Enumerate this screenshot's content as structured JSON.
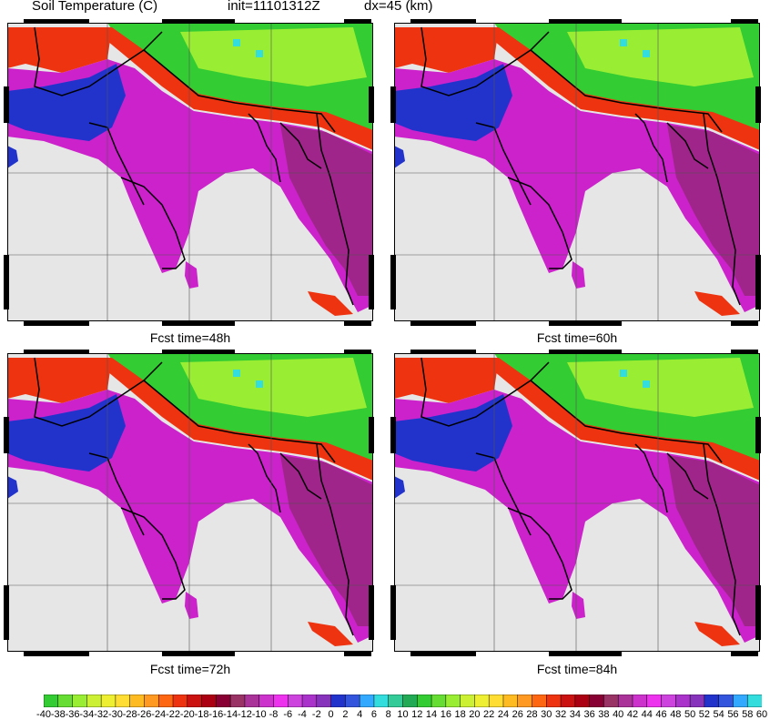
{
  "header": {
    "title": "Soil Temperature (C)",
    "init": "init=11101312Z",
    "dx": "dx=45 (km)"
  },
  "panels": [
    {
      "id": "p1",
      "label": ""
    },
    {
      "id": "p2",
      "label": ""
    },
    {
      "id": "p3",
      "label": "Fcst time=48h"
    },
    {
      "id": "p4",
      "label": "Fcst time=60h"
    }
  ],
  "bottom_labels": [
    "Fcst time=72h",
    "Fcst time=84h"
  ],
  "colorbar": {
    "ticks": [
      "-40",
      "-38",
      "-36",
      "-34",
      "-32",
      "-30",
      "-28",
      "-26",
      "-24",
      "-22",
      "-20",
      "-18",
      "-16",
      "-14",
      "-12",
      "-10",
      "-8",
      "-6",
      "-4",
      "-2",
      "0",
      "2",
      "4",
      "6",
      "8",
      "10",
      "12",
      "14",
      "16",
      "18",
      "20",
      "22",
      "24",
      "26",
      "28",
      "30",
      "32",
      "34",
      "36",
      "38",
      "40",
      "42",
      "44",
      "46",
      "48",
      "50",
      "52",
      "54",
      "56",
      "58",
      "60"
    ],
    "colors": [
      "#33cc33",
      "#66dd33",
      "#99ee33",
      "#ccf033",
      "#eeee33",
      "#ffdd33",
      "#ffbb22",
      "#ff9922",
      "#ff6611",
      "#ee3311",
      "#cc1111",
      "#aa0011",
      "#880033",
      "#993366",
      "#aa3399",
      "#cc33cc",
      "#ee33ee",
      "#cc44dd",
      "#aa33cc",
      "#8833bb",
      "#2233cc",
      "#3355dd",
      "#33aaff",
      "#33dddd",
      "#33cc99",
      "#22aa55",
      "#33cc33",
      "#66dd33",
      "#99ee33",
      "#ccf033",
      "#eeee33",
      "#ffdd33",
      "#ffbb22",
      "#ff9922",
      "#ff6611",
      "#ee3311",
      "#cc1111",
      "#aa0011",
      "#880033",
      "#993366",
      "#aa3399",
      "#cc33cc",
      "#ee33ee",
      "#cc44dd",
      "#aa33cc",
      "#8833bb",
      "#2233cc",
      "#3355dd",
      "#33aaff",
      "#33dddd"
    ]
  },
  "map_colors": {
    "land_hot": "#cc22cc",
    "land_dark": "#a0258a",
    "ocean": "#e6e6e6",
    "plateau": "#33cc33",
    "plateau_light": "#99ee33",
    "ridge": "#ee3311",
    "cold_west": "#2233cc"
  }
}
